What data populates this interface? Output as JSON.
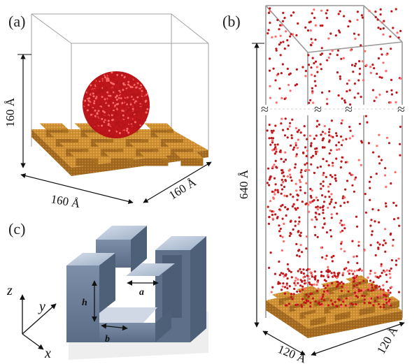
{
  "panels": {
    "a": {
      "label": "(a)",
      "height_label": "160 Å",
      "width_label": "160 Å",
      "depth_label": "160 Å"
    },
    "b": {
      "label": "(b)",
      "height_label": "640 Å",
      "width_label": "120 Å",
      "depth_label": "120 Å",
      "break_symbol": "≈"
    },
    "c": {
      "label": "(c)",
      "h_label": "h",
      "a_label": "a",
      "b_label": "b"
    }
  },
  "axes": {
    "x": "x",
    "y": "y",
    "z": "z"
  },
  "colors": {
    "substrate": "#c98a2e",
    "substrate_dark": "#8a5a18",
    "water": "#c0171b",
    "water_highlight": "#ff6a6a",
    "pillar_top": "#b9c6d8",
    "pillar_side": "#53657f",
    "pillar_front": "#6d7f99",
    "box_line": "#999999"
  }
}
